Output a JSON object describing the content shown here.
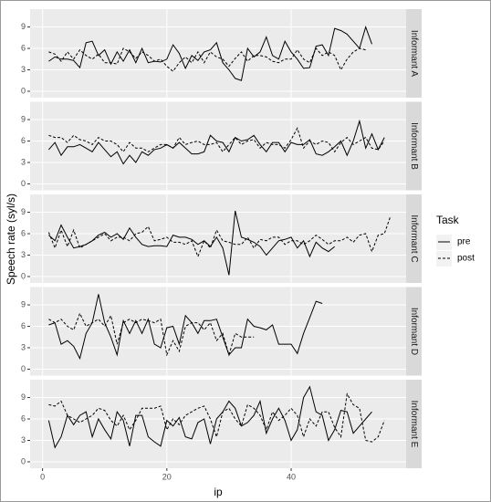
{
  "chart_data": {
    "type": "line",
    "xlabel": "ip",
    "ylabel": "Speech rate (syl/s)",
    "legend_title": "Task",
    "x": [
      1,
      2,
      3,
      4,
      5,
      6,
      7,
      8,
      9,
      10,
      11,
      12,
      13,
      14,
      15,
      16,
      17,
      18,
      19,
      20,
      21,
      22,
      23,
      24,
      25,
      26,
      27,
      28,
      29,
      30,
      31,
      32,
      33,
      34,
      35,
      36,
      37,
      38,
      39,
      40,
      41,
      42,
      43,
      44,
      45,
      46,
      47,
      48,
      49,
      50,
      51,
      52,
      53,
      54,
      55,
      56
    ],
    "xlim": [
      -2,
      58.5
    ],
    "xticks": [
      0,
      20,
      40
    ],
    "ylim": [
      -0.9,
      11.5
    ],
    "yticks": [
      0,
      3,
      6,
      9
    ],
    "grid": true,
    "panels": [
      {
        "label": "Informant A",
        "series": [
          {
            "name": "pre",
            "color": "#000000",
            "linetype": "solid",
            "values": [
              4.2,
              4.8,
              4.5,
              4.5,
              4.3,
              3.3,
              6.8,
              7.0,
              5.0,
              5.8,
              3.8,
              5.5,
              4.2,
              5.8,
              4.0,
              6.0,
              4.0,
              4.2,
              4.1,
              4.5,
              6.5,
              5.3,
              3.2,
              5.0,
              4.3,
              5.5,
              5.8,
              6.8,
              4.0,
              3.0,
              1.8,
              1.5,
              6.0,
              4.8,
              5.5,
              7.6,
              5.0,
              4.5,
              7.0,
              5.5,
              4.5,
              3.2,
              3.3,
              6.3,
              6.5,
              5.0,
              8.8,
              8.5,
              8.0,
              7.0,
              6.0,
              9.0,
              6.6,
              null,
              null,
              null
            ]
          },
          {
            "name": "post",
            "color": "#000000",
            "linetype": "dashed",
            "values": [
              5.5,
              5.2,
              4.2,
              5.5,
              4.5,
              5.8,
              5.0,
              4.5,
              5.2,
              4.0,
              4.0,
              3.8,
              6.0,
              5.5,
              4.6,
              5.5,
              5.0,
              4.2,
              4.5,
              3.5,
              2.8,
              4.0,
              4.8,
              4.0,
              5.5,
              4.0,
              5.5,
              4.8,
              4.5,
              3.5,
              4.6,
              5.5,
              4.2,
              5.0,
              5.0,
              4.8,
              4.2,
              4.0,
              4.5,
              4.5,
              5.8,
              4.5,
              4.0,
              6.0,
              5.0,
              5.5,
              5.0,
              3.0,
              4.5,
              5.5,
              6.0,
              5.8,
              null,
              null,
              null,
              null
            ]
          }
        ]
      },
      {
        "label": "Informant B",
        "series": [
          {
            "name": "pre",
            "color": "#000000",
            "linetype": "solid",
            "values": [
              4.8,
              5.8,
              4.0,
              5.2,
              5.2,
              5.5,
              5.0,
              4.5,
              5.8,
              4.8,
              3.8,
              4.5,
              2.8,
              4.0,
              3.0,
              4.5,
              4.0,
              4.8,
              5.0,
              5.5,
              5.0,
              5.8,
              5.0,
              4.2,
              4.2,
              4.5,
              6.8,
              6.0,
              5.8,
              4.5,
              6.5,
              6.0,
              6.2,
              6.8,
              5.5,
              4.5,
              5.8,
              5.8,
              4.5,
              5.8,
              5.5,
              5.5,
              6.2,
              4.2,
              4.0,
              4.5,
              5.2,
              6.0,
              4.0,
              6.0,
              8.8,
              5.0,
              7.0,
              4.8,
              6.5,
              null
            ]
          },
          {
            "name": "post",
            "color": "#000000",
            "linetype": "dashed",
            "values": [
              6.8,
              6.5,
              6.5,
              5.8,
              6.8,
              6.2,
              6.0,
              5.5,
              6.5,
              6.0,
              6.0,
              5.5,
              4.5,
              5.8,
              5.0,
              5.0,
              4.5,
              5.0,
              5.5,
              5.5,
              5.0,
              6.5,
              5.5,
              5.8,
              6.0,
              5.5,
              5.5,
              5.8,
              4.5,
              5.5,
              6.5,
              5.5,
              6.0,
              6.2,
              5.0,
              5.8,
              5.5,
              5.5,
              5.0,
              6.2,
              7.8,
              5.0,
              6.0,
              5.5,
              6.0,
              5.8,
              4.5,
              5.8,
              6.5,
              5.5,
              6.0,
              6.5,
              5.0,
              4.8,
              6.0,
              null
            ]
          }
        ]
      },
      {
        "label": "Informant C",
        "series": [
          {
            "name": "pre",
            "color": "#000000",
            "linetype": "solid",
            "values": [
              5.8,
              5.0,
              7.2,
              5.5,
              4.0,
              4.2,
              4.5,
              5.0,
              5.8,
              6.2,
              5.5,
              6.0,
              5.2,
              6.8,
              5.5,
              4.5,
              4.2,
              4.3,
              4.3,
              4.2,
              5.8,
              5.5,
              5.5,
              5.2,
              4.5,
              5.0,
              4.2,
              5.5,
              4.0,
              0.2,
              9.2,
              5.5,
              5.2,
              4.8,
              4.2,
              3.0,
              4.0,
              5.0,
              5.2,
              5.5,
              4.0,
              5.0,
              2.8,
              4.8,
              4.0,
              3.5,
              4.2,
              null,
              null,
              null,
              null,
              null,
              null,
              null,
              null,
              null
            ]
          },
          {
            "name": "post",
            "color": "#000000",
            "linetype": "dashed",
            "values": [
              6.2,
              4.0,
              6.5,
              4.2,
              6.5,
              4.0,
              4.5,
              5.0,
              5.5,
              6.0,
              5.0,
              5.5,
              5.5,
              5.0,
              6.0,
              6.2,
              7.0,
              5.0,
              5.2,
              5.5,
              4.8,
              4.8,
              4.5,
              5.0,
              2.8,
              5.0,
              4.0,
              6.5,
              5.0,
              4.8,
              4.5,
              4.5,
              5.5,
              4.0,
              5.2,
              5.0,
              5.5,
              5.5,
              4.5,
              5.0,
              5.0,
              4.5,
              5.0,
              5.8,
              5.2,
              4.5,
              5.0,
              5.0,
              5.5,
              4.8,
              5.8,
              6.0,
              3.5,
              5.8,
              6.0,
              8.5
            ]
          }
        ]
      },
      {
        "label": "Informant D",
        "series": [
          {
            "name": "pre",
            "color": "#000000",
            "linetype": "solid",
            "values": [
              6.2,
              6.5,
              3.5,
              4.0,
              3.2,
              1.5,
              5.0,
              6.5,
              10.5,
              6.5,
              4.5,
              2.0,
              6.8,
              5.0,
              6.8,
              5.0,
              7.0,
              3.5,
              3.0,
              5.8,
              6.0,
              3.5,
              7.5,
              6.5,
              5.0,
              6.8,
              6.8,
              7.0,
              4.5,
              2.0,
              3.0,
              3.0,
              7.0,
              6.0,
              5.8,
              5.5,
              6.2,
              3.5,
              3.5,
              3.5,
              2.2,
              5.0,
              7.2,
              9.5,
              9.2,
              null,
              null,
              null,
              null,
              null,
              null,
              null,
              null,
              null,
              null,
              null
            ]
          },
          {
            "name": "post",
            "color": "#000000",
            "linetype": "dashed",
            "values": [
              7.0,
              6.5,
              7.0,
              6.0,
              5.5,
              7.8,
              6.0,
              6.5,
              7.0,
              6.0,
              7.5,
              3.5,
              6.5,
              7.0,
              6.5,
              7.0,
              6.8,
              6.5,
              7.0,
              2.0,
              4.0,
              2.5,
              6.0,
              6.5,
              6.5,
              5.5,
              6.5,
              4.0,
              5.0,
              2.0,
              5.0,
              4.5,
              4.5,
              4.5,
              null,
              null,
              null,
              null,
              null,
              null,
              null,
              null,
              null,
              null,
              null,
              null,
              null,
              null,
              null,
              null,
              null,
              null,
              null,
              null,
              null,
              null
            ]
          }
        ]
      },
      {
        "label": "Informant E",
        "series": [
          {
            "name": "pre",
            "color": "#000000",
            "linetype": "solid",
            "values": [
              5.8,
              2.0,
              3.5,
              6.5,
              5.2,
              6.5,
              7.0,
              3.5,
              6.0,
              4.5,
              3.2,
              7.0,
              5.8,
              2.2,
              6.5,
              6.5,
              3.5,
              2.8,
              2.2,
              5.8,
              5.0,
              6.2,
              3.5,
              3.2,
              5.5,
              6.0,
              2.5,
              6.0,
              7.0,
              8.5,
              7.5,
              5.0,
              5.5,
              6.5,
              8.5,
              4.0,
              6.0,
              7.5,
              5.8,
              3.0,
              4.5,
              9.0,
              10.5,
              7.0,
              6.5,
              3.0,
              4.5,
              7.2,
              7.0,
              4.0,
              5.0,
              6.0,
              7.0,
              null,
              null,
              null
            ]
          },
          {
            "name": "post",
            "color": "#000000",
            "linetype": "dashed",
            "values": [
              8.0,
              7.8,
              8.5,
              6.5,
              6.0,
              5.5,
              6.0,
              6.5,
              7.5,
              7.2,
              5.8,
              5.0,
              6.5,
              4.5,
              5.8,
              7.5,
              7.5,
              7.5,
              7.8,
              4.5,
              6.0,
              5.2,
              6.5,
              7.0,
              7.5,
              7.8,
              6.0,
              3.5,
              7.0,
              7.5,
              6.0,
              5.0,
              8.0,
              7.5,
              6.5,
              4.5,
              7.0,
              5.8,
              6.5,
              7.5,
              6.5,
              3.5,
              6.0,
              5.0,
              7.0,
              7.0,
              4.8,
              3.5,
              9.5,
              8.0,
              7.5,
              3.0,
              2.8,
              3.5,
              5.8,
              null
            ]
          }
        ]
      }
    ]
  }
}
